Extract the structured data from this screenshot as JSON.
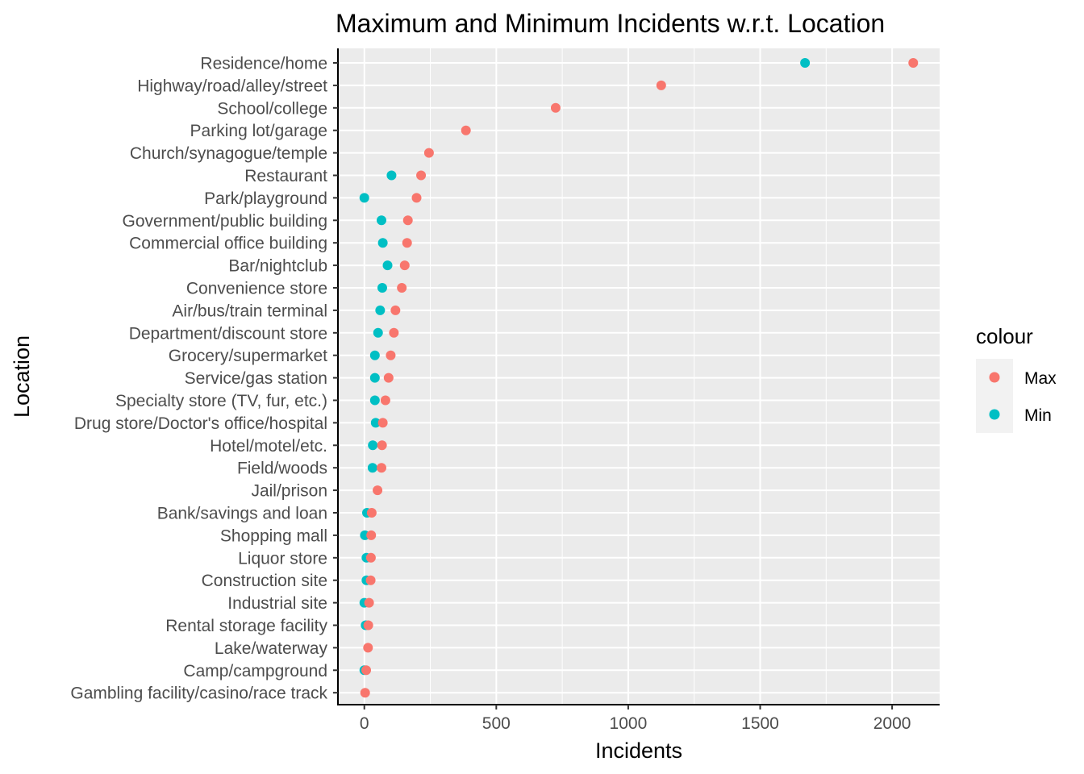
{
  "chart_data": {
    "type": "scatter",
    "title": "Maximum and Minimum Incidents w.r.t. Location",
    "xlabel": "Incidents",
    "ylabel": "Location",
    "xlim": [
      -100,
      2180
    ],
    "xticks": [
      0,
      500,
      1000,
      1500,
      2000
    ],
    "xtick_labels": [
      "0",
      "500",
      "1000",
      "1500",
      "2000"
    ],
    "grid": true,
    "legend": {
      "title": "colour",
      "placement": "right",
      "entries": [
        {
          "label": "Max",
          "color": "#F8766D"
        },
        {
          "label": "Min",
          "color": "#00BFC4"
        }
      ]
    },
    "categories": [
      "Residence/home",
      "Highway/road/alley/street",
      "School/college",
      "Parking lot/garage",
      "Church/synagogue/temple",
      "Restaurant",
      "Park/playground",
      "Government/public building",
      "Commercial office building",
      "Bar/nightclub",
      "Convenience store",
      "Air/bus/train terminal",
      "Department/discount store",
      "Grocery/supermarket",
      "Service/gas station",
      "Specialty store (TV, fur, etc.)",
      "Drug store/Doctor's office/hospital",
      "Hotel/motel/etc.",
      "Field/woods",
      "Jail/prison",
      "Bank/savings and loan",
      "Shopping mall",
      "Liquor store",
      "Construction site",
      "Industrial site",
      "Rental storage facility",
      "Lake/waterway",
      "Camp/campground",
      "Gambling facility/casino/race track"
    ],
    "series": [
      {
        "name": "Max",
        "color": "#F8766D",
        "values": [
          2080,
          1125,
          725,
          385,
          245,
          215,
          198,
          165,
          162,
          153,
          142,
          118,
          112,
          100,
          92,
          80,
          70,
          67,
          65,
          50,
          28,
          26,
          25,
          24,
          18,
          15,
          14,
          7,
          3
        ]
      },
      {
        "name": "Min",
        "color": "#00BFC4",
        "values": [
          1670,
          null,
          null,
          null,
          null,
          103,
          0,
          65,
          70,
          88,
          68,
          60,
          52,
          40,
          40,
          40,
          43,
          32,
          31,
          null,
          10,
          2,
          8,
          8,
          0,
          5,
          null,
          0,
          null
        ]
      }
    ]
  }
}
